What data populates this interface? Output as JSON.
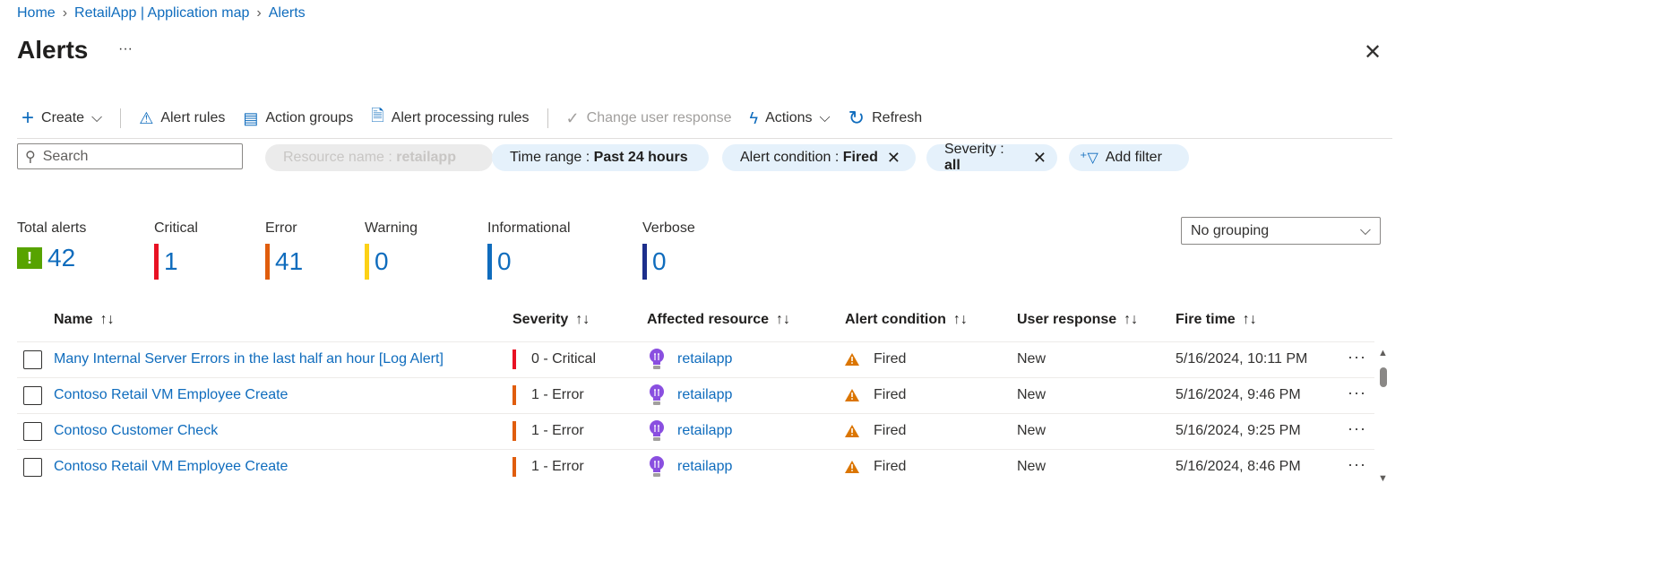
{
  "breadcrumb": [
    "Home",
    "RetailApp | Application map",
    "Alerts"
  ],
  "page_title": "Alerts",
  "toolbar": {
    "create": "Create",
    "alert_rules": "Alert rules",
    "action_groups": "Action groups",
    "alert_processing_rules": "Alert processing rules",
    "change_user_response": "Change user response",
    "actions": "Actions",
    "refresh": "Refresh"
  },
  "search": {
    "placeholder": "Search"
  },
  "filters": [
    {
      "label": "Resource name : ",
      "value": "retailapp",
      "disabled": true
    },
    {
      "label": "Time range : ",
      "value": "Past 24 hours"
    },
    {
      "label": "Alert condition : ",
      "value": "Fired"
    },
    {
      "label": "Severity : ",
      "value": "all"
    }
  ],
  "add_filter": "Add filter",
  "summary": [
    {
      "label": "Total alerts",
      "value": "42",
      "color": "#0f6cbd"
    },
    {
      "label": "Critical",
      "value": "1",
      "color": "#e81123"
    },
    {
      "label": "Error",
      "value": "41",
      "color": "#e05d0d"
    },
    {
      "label": "Warning",
      "value": "0",
      "color": "#fcd116"
    },
    {
      "label": "Informational",
      "value": "0",
      "color": "#0f6cbd"
    },
    {
      "label": "Verbose",
      "value": "0",
      "color": "#1d2f8c"
    }
  ],
  "grouping": "No grouping",
  "columns": [
    "Name",
    "Severity",
    "Affected resource",
    "Alert condition",
    "User response",
    "Fire time"
  ],
  "rows": [
    {
      "name": "Many Internal Server Errors in the last half an hour [Log Alert]",
      "severity": "0 - Critical",
      "sev_color": "#e81123",
      "resource": "retailapp",
      "condition": "Fired",
      "response": "New",
      "time": "5/16/2024, 10:11 PM"
    },
    {
      "name": "Contoso Retail VM Employee Create",
      "severity": "1 - Error",
      "sev_color": "#e05d0d",
      "resource": "retailapp",
      "condition": "Fired",
      "response": "New",
      "time": "5/16/2024, 9:46 PM"
    },
    {
      "name": "Contoso Customer Check",
      "severity": "1 - Error",
      "sev_color": "#e05d0d",
      "resource": "retailapp",
      "condition": "Fired",
      "response": "New",
      "time": "5/16/2024, 9:25 PM"
    },
    {
      "name": "Contoso Retail VM Employee Create",
      "severity": "1 - Error",
      "sev_color": "#e05d0d",
      "resource": "retailapp",
      "condition": "Fired",
      "response": "New",
      "time": "5/16/2024, 8:46 PM"
    }
  ]
}
